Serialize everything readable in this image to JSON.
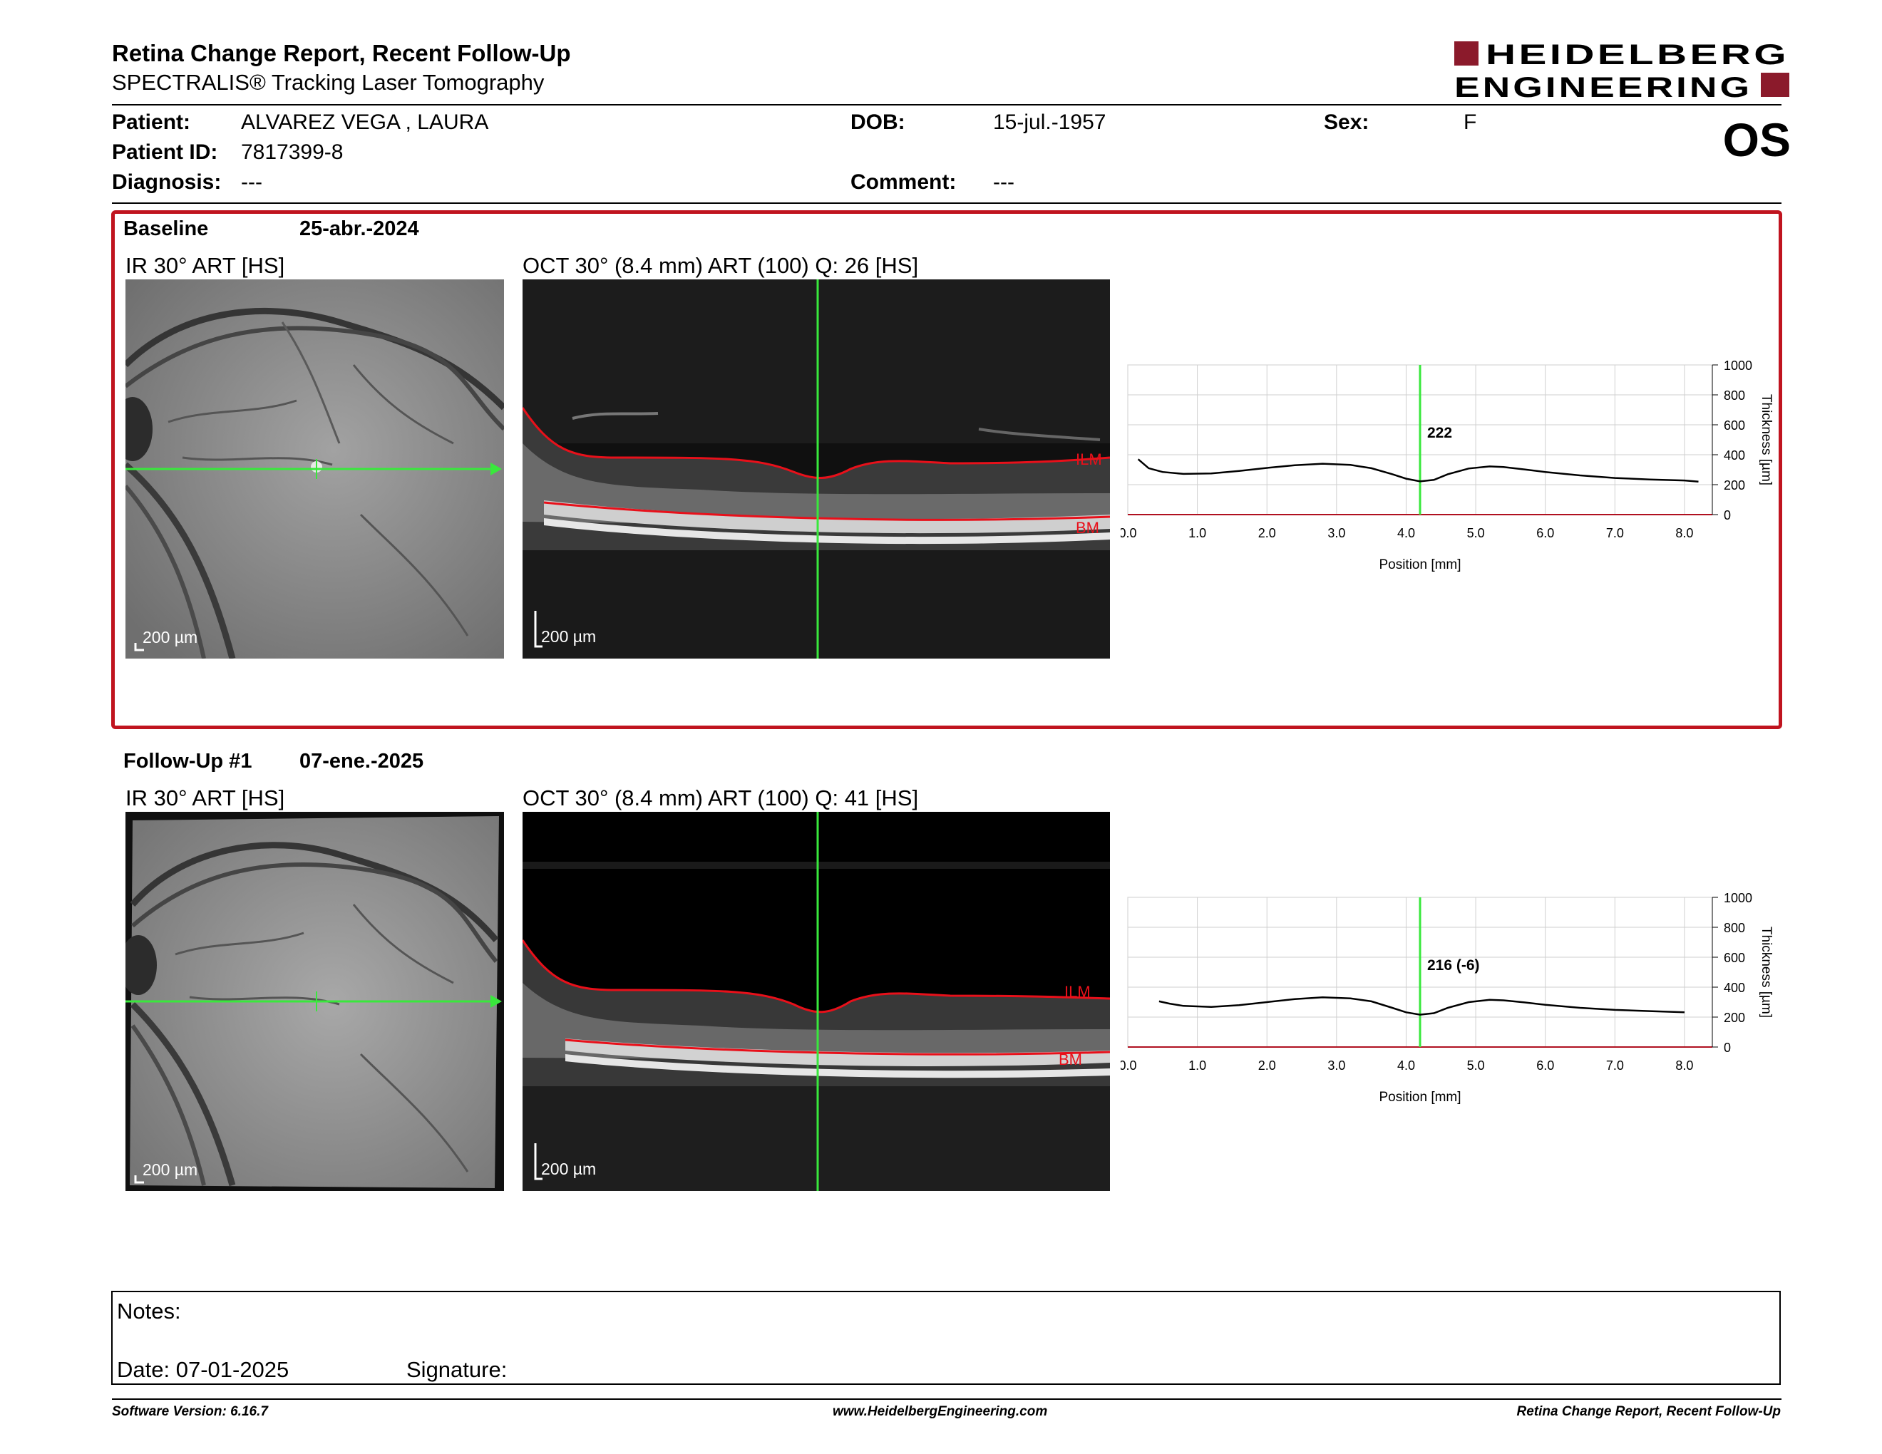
{
  "header": {
    "title": "Retina Change Report, Recent Follow-Up",
    "subtitle": "SPECTRALIS® Tracking Laser Tomography",
    "logo_line1": "HEIDELBERG",
    "logo_line2": "ENGINEERING",
    "brand_color": "#8b1a2b"
  },
  "patient": {
    "patient_label": "Patient:",
    "patient_value": "ALVAREZ VEGA , LAURA",
    "id_label": "Patient ID:",
    "id_value": "7817399-8",
    "diagnosis_label": "Diagnosis:",
    "diagnosis_value": "---",
    "dob_label": "DOB:",
    "dob_value": "15-jul.-1957",
    "comment_label": "Comment:",
    "comment_value": "---",
    "sex_label": "Sex:",
    "sex_value": "F",
    "eye": "OS"
  },
  "baseline": {
    "label": "Baseline",
    "date": "25-abr.-2024",
    "ir_caption": "IR 30° ART [HS]",
    "oct_caption": "OCT 30° (8.4 mm) ART (100) Q: 26 [HS]",
    "ir_scale": "200 µm",
    "oct_scale": "200 µm",
    "ilm": "ILM",
    "bm": "BM"
  },
  "followup": {
    "label": "Follow-Up #1",
    "date": "07-ene.-2025",
    "ir_caption": "IR 30° ART [HS]",
    "oct_caption": "OCT 30° (8.4 mm) ART (100) Q: 41 [HS]",
    "ir_scale": "200 µm",
    "oct_scale": "200 µm",
    "ilm": "ILM",
    "bm": "BM"
  },
  "chart_data": [
    {
      "type": "line",
      "xlabel": "Position [mm]",
      "ylabel": "Thickness [µm]",
      "xlim": [
        0,
        8.4
      ],
      "ylim": [
        0,
        1000
      ],
      "xticks": [
        "0.0",
        "1.0",
        "2.0",
        "3.0",
        "4.0",
        "5.0",
        "6.0",
        "7.0",
        "8.0"
      ],
      "yticks": [
        "0",
        "200",
        "400",
        "600",
        "800",
        "1000"
      ],
      "grid": true,
      "cursor_x": 4.2,
      "cursor_label": "222",
      "series": [
        {
          "x": [
            0.15,
            0.3,
            0.5,
            0.8,
            1.2,
            1.6,
            2.0,
            2.4,
            2.8,
            3.2,
            3.5,
            3.8,
            4.0,
            4.2,
            4.4,
            4.6,
            4.9,
            5.2,
            5.4,
            5.7,
            6.0,
            6.5,
            7.0,
            7.5,
            8.0,
            8.2
          ],
          "values": [
            370,
            310,
            285,
            272,
            275,
            292,
            312,
            330,
            340,
            332,
            310,
            270,
            240,
            222,
            232,
            270,
            308,
            322,
            318,
            302,
            285,
            262,
            245,
            235,
            228,
            220
          ]
        }
      ]
    },
    {
      "type": "line",
      "xlabel": "Position [mm]",
      "ylabel": "Thickness [µm]",
      "xlim": [
        0,
        8.4
      ],
      "ylim": [
        0,
        1000
      ],
      "xticks": [
        "0.0",
        "1.0",
        "2.0",
        "3.0",
        "4.0",
        "5.0",
        "6.0",
        "7.0",
        "8.0"
      ],
      "yticks": [
        "0",
        "200",
        "400",
        "600",
        "800",
        "1000"
      ],
      "grid": true,
      "cursor_x": 4.2,
      "cursor_label": "216 (-6)",
      "series": [
        {
          "x": [
            0.45,
            0.6,
            0.8,
            1.2,
            1.6,
            2.0,
            2.4,
            2.8,
            3.2,
            3.5,
            3.8,
            4.0,
            4.2,
            4.4,
            4.6,
            4.9,
            5.2,
            5.4,
            5.7,
            6.0,
            6.5,
            7.0,
            7.5,
            8.0
          ],
          "values": [
            305,
            290,
            275,
            268,
            280,
            300,
            320,
            332,
            325,
            305,
            262,
            232,
            216,
            226,
            262,
            300,
            315,
            312,
            298,
            282,
            262,
            248,
            240,
            232
          ]
        }
      ]
    }
  ],
  "notes": {
    "notes_label": "Notes:",
    "date_label": "Date: 07-01-2025",
    "signature_label": "Signature:"
  },
  "footer": {
    "left": "Software Version: 6.16.7",
    "center": "www.HeidelbergEngineering.com",
    "right": "Retina Change Report, Recent Follow-Up"
  }
}
